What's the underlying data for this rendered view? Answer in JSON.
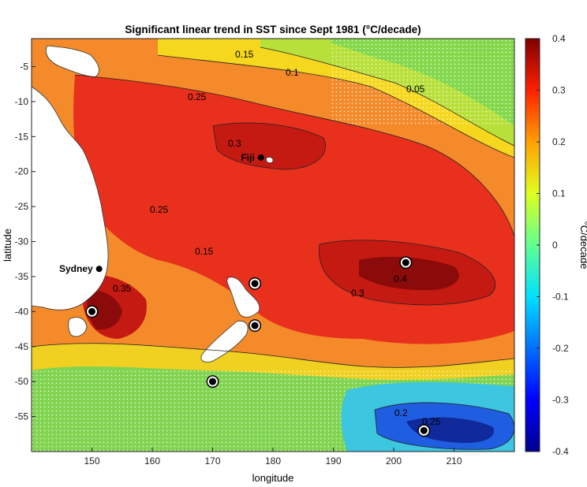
{
  "title": "Significant linear trend in SST since Sept 1981 (°C/decade)",
  "xlabel": "longitude",
  "ylabel": "latitude",
  "colorbar_label": "°C/decade",
  "x_ticks": [
    "150",
    "160",
    "170",
    "180",
    "190",
    "200",
    "210"
  ],
  "y_ticks": [
    "-5",
    "-10",
    "-15",
    "-20",
    "-25",
    "-30",
    "-35",
    "-40",
    "-45",
    "-50",
    "-55"
  ],
  "colorbar_ticks": [
    "0.4",
    "0.3",
    "0.2",
    "0.1",
    "0",
    "-0.1",
    "-0.2",
    "-0.3",
    "-0.4"
  ],
  "contour_labels": [
    "0.15",
    "0.1",
    "0.05",
    "0.25",
    "0.3",
    "0.25",
    "0.15",
    "0.35",
    "0.4",
    "0.3",
    "0.2",
    "0.25"
  ],
  "places": [
    {
      "name": "Fiji",
      "lon": 178,
      "lat": -18
    },
    {
      "name": "Sydney",
      "lon": 151.2,
      "lat": -33.9
    }
  ],
  "sites": [
    {
      "lon": 150,
      "lat": -40
    },
    {
      "lon": 177,
      "lat": -36
    },
    {
      "lon": 177,
      "lat": -42
    },
    {
      "lon": 170,
      "lat": -50
    },
    {
      "lon": 202,
      "lat": -33
    },
    {
      "lon": 205,
      "lat": -57
    }
  ],
  "map": {
    "lon_range": [
      140,
      220
    ],
    "lat_range": [
      -60,
      -1
    ],
    "colorbar_range": [
      -0.4,
      0.4
    ],
    "colormap": "jet",
    "colors": {
      "dark_red": "#8b0000",
      "red": "#e5201b",
      "orange": "#f37321",
      "yellow": "#f5e51e",
      "green": "#8fd448",
      "cyan": "#2ad8e4",
      "blue": "#1446d8",
      "dark_blue": "#0a0a8c",
      "land": "#ffffff"
    }
  }
}
